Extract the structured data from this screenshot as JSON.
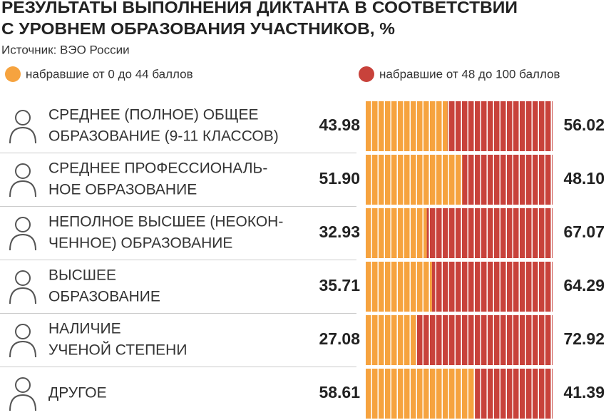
{
  "chart_data": {
    "type": "stacked-bar-100",
    "title": [
      "РЕЗУЛЬТАТЫ ВЫПОЛНЕНИЯ ДИКТАНТА В СООТВЕТСТВИИ",
      "С УРОВНЕМ ОБРАЗОВАНИЯ УЧАСТНИКОВ, %"
    ],
    "source": "Источник: ВЭО России",
    "categories": [
      [
        "СРЕДНЕЕ (ПОЛНОЕ) ОБЩЕЕ",
        "ОБРАЗОВАНИЕ (9-11 КЛАССОВ)"
      ],
      [
        "СРЕДНЕЕ ПРОФЕССИОНАЛЬ-",
        "НОЕ ОБРАЗОВАНИЕ"
      ],
      [
        "НЕПОЛНОЕ ВЫСШЕЕ (НЕОКОН-",
        "ЧЕННОЕ) ОБРАЗОВАНИЕ"
      ],
      [
        "ВЫСШЕЕ",
        "ОБРАЗОВАНИЕ"
      ],
      [
        "НАЛИЧИЕ",
        "УЧЕНОЙ СТЕПЕНИ"
      ],
      [
        "ДРУГОЕ"
      ]
    ],
    "series": [
      {
        "name": "набравшие от 0 до 44 баллов",
        "color": "#f6a33f",
        "values": [
          43.98,
          51.9,
          32.93,
          35.71,
          27.08,
          58.61
        ],
        "value_labels": [
          "43.98",
          "51.90",
          "32.93",
          "35.71",
          "27.08",
          "58.61"
        ]
      },
      {
        "name": "набравшие от 48 до 100 баллов",
        "color": "#c8423b",
        "values": [
          56.02,
          48.1,
          67.07,
          64.29,
          72.92,
          41.39
        ],
        "value_labels": [
          "56.02",
          "48.10",
          "67.07",
          "64.29",
          "72.92",
          "41.39"
        ]
      }
    ],
    "xlim": [
      0,
      100
    ]
  }
}
